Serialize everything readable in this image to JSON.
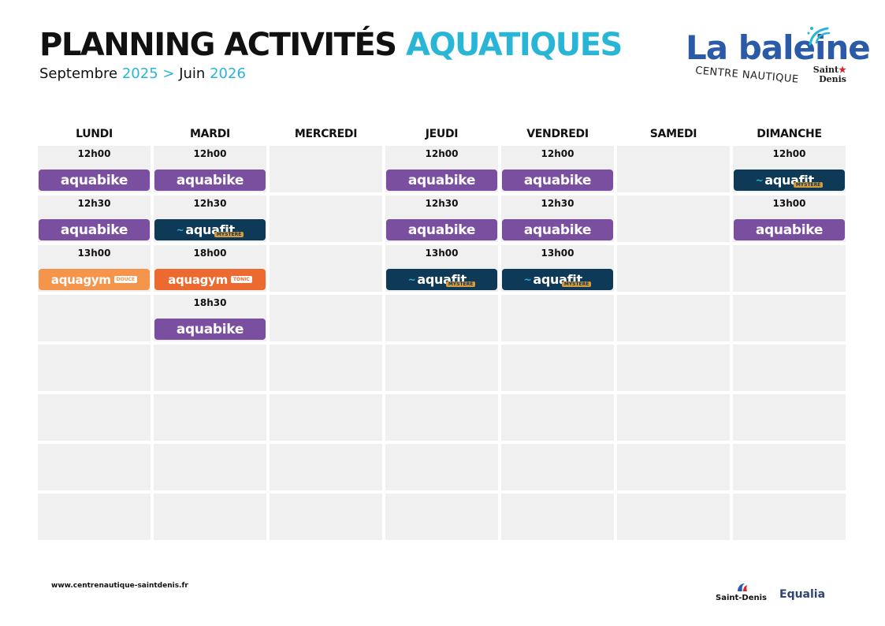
{
  "header": {
    "title_main": "PLANNING ACTIVITÉS",
    "title_accent": "AQUATIQUES",
    "sub_start_label": "Septembre",
    "sub_start_year": "2025",
    "sub_arrow": ">",
    "sub_end_label": "Juin",
    "sub_end_year": "2026"
  },
  "logo": {
    "brand": "La baleine",
    "tagline": "CENTRE NAUTIQUE",
    "city_line1": "Saint",
    "city_line2": "Denis"
  },
  "days": [
    "LUNDI",
    "MARDI",
    "MERCREDI",
    "JEUDI",
    "VENDREDI",
    "SAMEDI",
    "DIMANCHE"
  ],
  "activity_labels": {
    "bike": "aquabike",
    "fit": "aquafit",
    "fit_tag": "MYSTÈRE",
    "gym": "aquagym",
    "douce_tag": "DOUCE",
    "tonic_tag": "TONIC"
  },
  "schedule": {
    "lundi": [
      {
        "time": "12h00",
        "activity": "aquabike"
      },
      {
        "time": "12h30",
        "activity": "aquabike"
      },
      {
        "time": "13h00",
        "activity": "aquagym douce"
      }
    ],
    "mardi": [
      {
        "time": "12h00",
        "activity": "aquabike"
      },
      {
        "time": "12h30",
        "activity": "aquafit"
      },
      {
        "time": "18h00",
        "activity": "aquagym tonic"
      },
      {
        "time": "18h30",
        "activity": "aquabike"
      }
    ],
    "mercredi": [],
    "jeudi": [
      {
        "time": "12h00",
        "activity": "aquabike"
      },
      {
        "time": "12h30",
        "activity": "aquabike"
      },
      {
        "time": "13h00",
        "activity": "aquafit"
      }
    ],
    "vendredi": [
      {
        "time": "12h00",
        "activity": "aquabike"
      },
      {
        "time": "12h30",
        "activity": "aquabike"
      },
      {
        "time": "13h00",
        "activity": "aquafit"
      }
    ],
    "samedi": [],
    "dimanche": [
      {
        "time": "12h00",
        "activity": "aquafit"
      },
      {
        "time": "13h00",
        "activity": "aquabike"
      }
    ]
  },
  "colors": {
    "accent": "#29b6d6",
    "aquabike": "#7b4fa0",
    "aquafit": "#0e3a58",
    "aquagym_douce": "#f5954c",
    "aquagym_tonic": "#ec6a2f",
    "cell": "#f0f0f0"
  },
  "footer": {
    "url": "www.centrenautique-saintdenis.fr",
    "partner1": "Saint-Denis",
    "partner2": "Equalia"
  }
}
